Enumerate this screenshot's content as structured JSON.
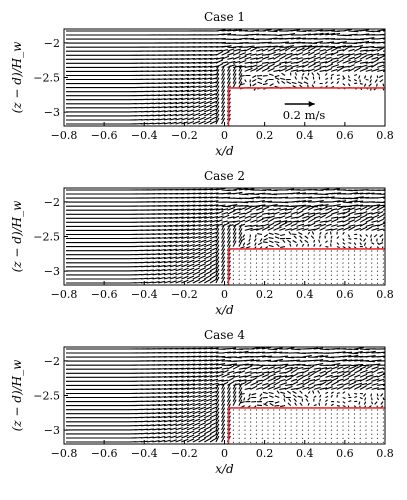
{
  "chart_data": [
    {
      "type": "vector-field",
      "title": "Case 1",
      "xlabel": "x/d",
      "ylabel": "(z − d)/H_w",
      "xlim": [
        -0.8,
        0.8
      ],
      "ylim": [
        -3.2,
        -1.8
      ],
      "xticks": [
        "−0.8",
        "−0.6",
        "−0.4",
        "−0.2",
        "0",
        "0.2",
        "0.4",
        "0.6",
        "0.8"
      ],
      "yticks": [
        "−2",
        "−2.5",
        "−3"
      ],
      "step_top": -2.65,
      "step_x": 0.02,
      "reference_vector": {
        "label": "0.2 m/s",
        "magnitude": 0.2
      }
    },
    {
      "type": "vector-field",
      "title": "Case 2",
      "xlabel": "x/d",
      "ylabel": "(z − d)/H_w",
      "xlim": [
        -0.8,
        0.8
      ],
      "ylim": [
        -3.2,
        -1.8
      ],
      "xticks": [
        "−0.8",
        "−0.6",
        "−0.4",
        "−0.2",
        "0",
        "0.2",
        "0.4",
        "0.6",
        "0.8"
      ],
      "yticks": [
        "−2",
        "−2.5",
        "−3"
      ],
      "step_top": -2.68,
      "step_x": 0.02
    },
    {
      "type": "vector-field",
      "title": "Case 4",
      "xlabel": "x/d",
      "ylabel": "(z − d)/H_w",
      "xlim": [
        -0.8,
        0.8
      ],
      "ylim": [
        -3.2,
        -1.8
      ],
      "xticks": [
        "−0.8",
        "−0.6",
        "−0.4",
        "−0.2",
        "0",
        "0.2",
        "0.4",
        "0.6",
        "0.8"
      ],
      "yticks": [
        "−2",
        "−2.5",
        "−3"
      ],
      "step_top": -2.68,
      "step_x": 0.02
    }
  ],
  "colors": {
    "axes": "#000000",
    "vectors": "#000000",
    "step_outline": "#e8303a"
  }
}
